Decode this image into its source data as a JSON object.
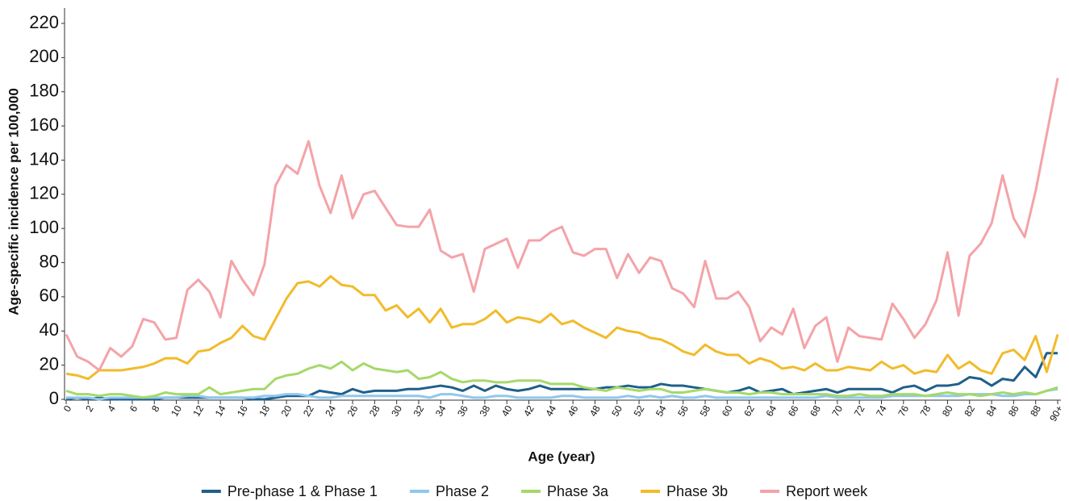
{
  "chart_data": {
    "type": "line",
    "x_label": "Age (year)",
    "y_label": "Age-specific incidence per 100,000",
    "categories": [
      "0",
      null,
      "2",
      null,
      "4",
      null,
      "6",
      null,
      "8",
      null,
      "10",
      null,
      "12",
      null,
      "14",
      null,
      "16",
      null,
      "18",
      null,
      "20",
      null,
      "22",
      null,
      "24",
      null,
      "26",
      null,
      "28",
      null,
      "30",
      null,
      "32",
      null,
      "34",
      null,
      "36",
      null,
      "38",
      null,
      "40",
      null,
      "42",
      null,
      "44",
      null,
      "46",
      null,
      "48",
      null,
      "50",
      null,
      "52",
      null,
      "54",
      null,
      "56",
      null,
      "58",
      null,
      "60",
      null,
      "62",
      null,
      "64",
      null,
      "66",
      null,
      "68",
      null,
      "70",
      null,
      "72",
      null,
      "74",
      null,
      "76",
      null,
      "78",
      null,
      "80",
      null,
      "82",
      null,
      "84",
      null,
      "86",
      null,
      "88",
      null,
      "90+"
    ],
    "series": [
      {
        "name": "Pre-phase 1 & Phase 1",
        "color": "#1f5f8b",
        "values": [
          0,
          1,
          0,
          1,
          0,
          0,
          0,
          0,
          0,
          1,
          1,
          1,
          1,
          1,
          1,
          1,
          1,
          0,
          0,
          1,
          2,
          2,
          2,
          5,
          4,
          3,
          6,
          4,
          5,
          5,
          5,
          6,
          6,
          7,
          8,
          7,
          5,
          8,
          5,
          8,
          6,
          5,
          6,
          8,
          6,
          6,
          6,
          6,
          6,
          7,
          7,
          8,
          7,
          7,
          9,
          8,
          8,
          7,
          6,
          5,
          4,
          5,
          7,
          4,
          5,
          6,
          3,
          4,
          5,
          6,
          4,
          6,
          6,
          6,
          6,
          4,
          7,
          8,
          5,
          8,
          8,
          9,
          13,
          12,
          8,
          12,
          11,
          19,
          13,
          27,
          27
        ]
      },
      {
        "name": "Phase 2",
        "color": "#8fc8ee",
        "values": [
          1,
          1,
          1,
          0,
          1,
          1,
          1,
          1,
          1,
          1,
          1,
          2,
          2,
          1,
          1,
          1,
          1,
          1,
          2,
          2,
          3,
          3,
          2,
          1,
          1,
          2,
          2,
          2,
          2,
          2,
          2,
          2,
          2,
          1,
          3,
          3,
          2,
          1,
          1,
          2,
          2,
          1,
          1,
          1,
          1,
          2,
          2,
          1,
          1,
          1,
          1,
          2,
          1,
          2,
          1,
          2,
          1,
          1,
          2,
          1,
          1,
          1,
          1,
          1,
          1,
          1,
          1,
          1,
          1,
          2,
          1,
          1,
          1,
          1,
          1,
          2,
          2,
          2,
          2,
          2,
          2,
          2,
          3,
          3,
          3,
          2,
          2,
          3,
          3,
          5,
          6
        ]
      },
      {
        "name": "Phase 3a",
        "color": "#a5d96a",
        "values": [
          5,
          3,
          3,
          2,
          3,
          3,
          2,
          1,
          2,
          4,
          3,
          3,
          3,
          7,
          3,
          4,
          5,
          6,
          6,
          12,
          14,
          15,
          18,
          20,
          18,
          22,
          17,
          21,
          18,
          17,
          16,
          17,
          12,
          13,
          16,
          12,
          10,
          11,
          11,
          10,
          10,
          11,
          11,
          11,
          9,
          9,
          9,
          7,
          6,
          5,
          7,
          6,
          5,
          6,
          6,
          4,
          4,
          5,
          6,
          5,
          4,
          4,
          3,
          4,
          4,
          3,
          3,
          3,
          3,
          3,
          2,
          2,
          3,
          2,
          2,
          3,
          3,
          3,
          2,
          3,
          4,
          3,
          3,
          2,
          3,
          4,
          3,
          4,
          3,
          5,
          7
        ]
      },
      {
        "name": "Phase 3b",
        "color": "#f2bb2b",
        "values": [
          15,
          14,
          12,
          17,
          17,
          17,
          18,
          19,
          21,
          24,
          24,
          21,
          28,
          29,
          33,
          36,
          43,
          37,
          35,
          47,
          59,
          68,
          69,
          66,
          72,
          67,
          66,
          61,
          61,
          52,
          55,
          48,
          53,
          45,
          53,
          42,
          44,
          44,
          47,
          52,
          45,
          48,
          47,
          45,
          50,
          44,
          46,
          42,
          39,
          36,
          42,
          40,
          39,
          36,
          35,
          32,
          28,
          26,
          32,
          28,
          26,
          26,
          21,
          24,
          22,
          18,
          19,
          17,
          21,
          17,
          17,
          19,
          18,
          17,
          22,
          18,
          20,
          15,
          17,
          16,
          26,
          18,
          22,
          17,
          15,
          27,
          29,
          23,
          37,
          16,
          38
        ]
      },
      {
        "name": "Report week",
        "color": "#f4a3a8",
        "values": [
          38,
          25,
          22,
          17,
          30,
          25,
          31,
          47,
          45,
          35,
          36,
          64,
          70,
          63,
          48,
          81,
          70,
          61,
          79,
          125,
          137,
          132,
          151,
          125,
          109,
          131,
          106,
          120,
          122,
          112,
          102,
          101,
          101,
          111,
          87,
          83,
          85,
          63,
          88,
          91,
          94,
          77,
          93,
          93,
          98,
          101,
          86,
          84,
          88,
          88,
          71,
          85,
          74,
          83,
          81,
          65,
          62,
          54,
          81,
          59,
          59,
          63,
          54,
          34,
          42,
          38,
          53,
          30,
          43,
          48,
          22,
          42,
          37,
          36,
          35,
          56,
          47,
          36,
          44,
          58,
          86,
          49,
          84,
          91,
          103,
          131,
          106,
          95,
          122,
          155,
          188
        ]
      }
    ],
    "ylim": [
      0,
      220
    ],
    "yticks": [
      0,
      20,
      40,
      60,
      80,
      100,
      120,
      140,
      160,
      180,
      200,
      220
    ],
    "grid": false,
    "legend": "bottom"
  }
}
